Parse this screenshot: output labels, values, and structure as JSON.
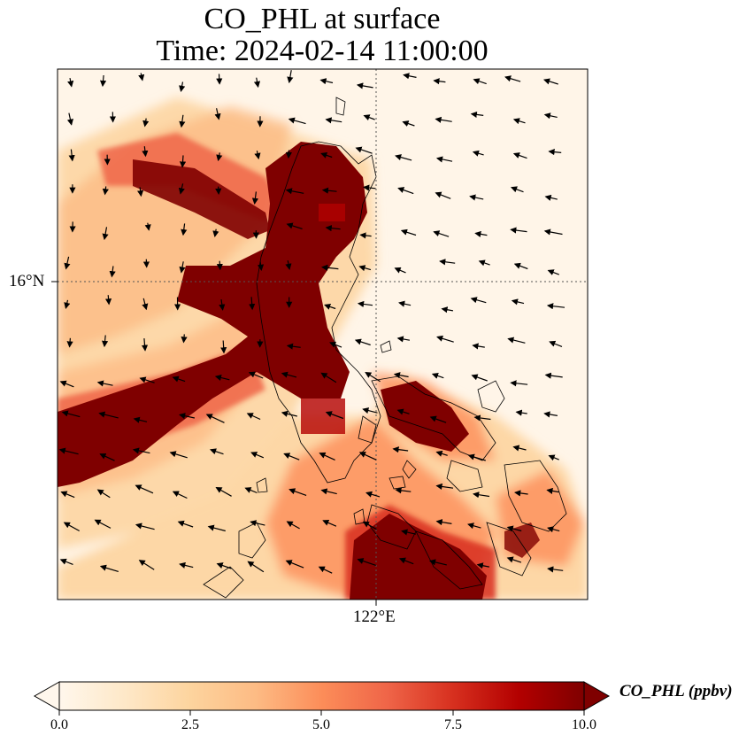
{
  "title_line1": "CO_PHL at surface",
  "title_line2": "Time: 2024-02-14 11:00:00",
  "axes": {
    "lat_tick_label": "16°N",
    "lon_tick_label": "122°E",
    "gridlines": "dotted"
  },
  "colorbar": {
    "label": "CO_PHL (ppbv)",
    "ticks": [
      "0.0",
      "2.5",
      "5.0",
      "7.5",
      "10.0"
    ],
    "range": [
      0,
      10
    ],
    "extend": "both",
    "colormap": [
      "#fff7ec",
      "#fee8c8",
      "#fdd49e",
      "#fdbb84",
      "#fc8d59",
      "#ef6548",
      "#d7301f",
      "#b30000",
      "#7f0000"
    ]
  },
  "map": {
    "plume_color": "#7f0000",
    "background_color": "#fff5e8",
    "coastline_color": "#000000",
    "wind_vectors": "black arrows"
  }
}
